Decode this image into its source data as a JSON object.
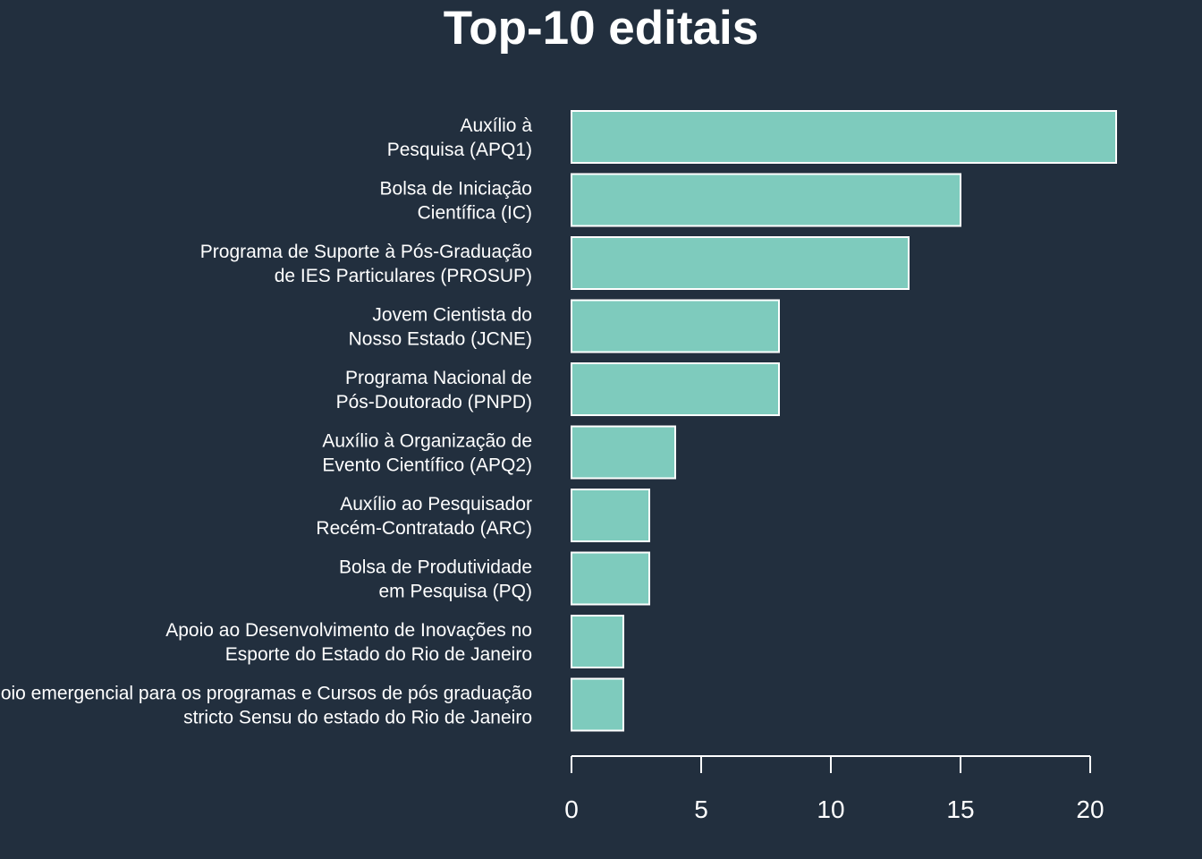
{
  "chart_data": {
    "type": "bar",
    "orientation": "horizontal",
    "title": "Top-10 editais",
    "xlabel": "",
    "ylabel": "",
    "categories": [
      [
        "Auxílio à",
        "Pesquisa (APQ1)"
      ],
      [
        "Bolsa de Iniciação",
        "Científica (IC)"
      ],
      [
        "Programa de Suporte à Pós-Graduação",
        "de IES Particulares (PROSUP)"
      ],
      [
        "Jovem Cientista do",
        "Nosso Estado (JCNE)"
      ],
      [
        "Programa Nacional de",
        "Pós-Doutorado (PNPD)"
      ],
      [
        "Auxílio à Organização de",
        "Evento Científico (APQ2)"
      ],
      [
        "Auxílio ao Pesquisador",
        "Recém-Contratado (ARC)"
      ],
      [
        "Bolsa de Produtividade",
        "em Pesquisa (PQ)"
      ],
      [
        "Apoio ao Desenvolvimento de Inovações no",
        "Esporte do Estado do Rio de Janeiro"
      ],
      [
        "Apoio emergencial para os programas e Cursos de pós graduação",
        "stricto Sensu do estado do Rio de Janeiro"
      ]
    ],
    "values": [
      21,
      15,
      13,
      8,
      8,
      4,
      3,
      3,
      2,
      2
    ],
    "xlim": [
      0,
      21
    ],
    "xticks": [
      0,
      5,
      10,
      15,
      20
    ],
    "grid": false,
    "legend": "none",
    "colors": {
      "background": "#222f3e",
      "bar_fill": "#7ecbbd",
      "bar_stroke": "#ffffff",
      "text": "#ffffff",
      "axis": "#ffffff"
    }
  }
}
